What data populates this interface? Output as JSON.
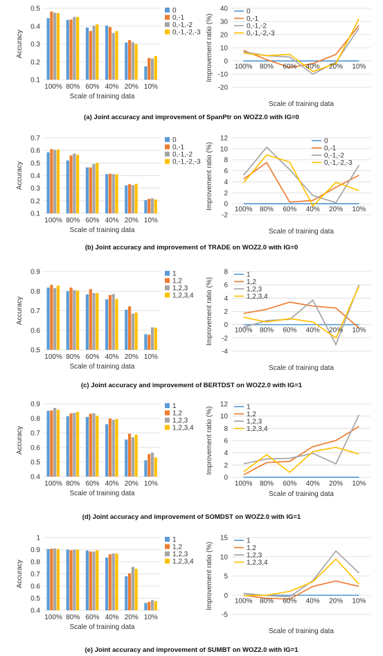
{
  "colors": [
    "#5b9bd5",
    "#ed7d31",
    "#a5a5a5",
    "#ffc000"
  ],
  "captions": [
    "(a) Joint accuracy and improvement  of SpanPtr on WOZ2.0 with IG=0",
    "(b) Joint accuracy and improvement of TRADE on WOZ2.0 with IG=0",
    "(c) Joint accuracy and improvement of BERTDST on WOZ2.0 with IG=1",
    "(d) Joint accuracy and improvement of SOMDST on WOZ2.0 with IG=1",
    "(e) Joint accuracy and improvement of SUMBT on WOZ2.0 with IG=1"
  ],
  "chart_data": [
    {
      "type": "bar",
      "panel": "a",
      "side": "left",
      "categories": [
        "100%",
        "80%",
        "60%",
        "40%",
        "20%",
        "10%"
      ],
      "xlabel": "Scale of training data",
      "ylabel": "Accuracy",
      "ylim": [
        0.1,
        0.5
      ],
      "yticks": [
        "0.1",
        "0.2",
        "0.3",
        "0.4",
        "0.5"
      ],
      "grid": true,
      "legend": "right",
      "series": [
        {
          "name": "0",
          "values": [
            0.445,
            0.435,
            0.392,
            0.403,
            0.308,
            0.175
          ]
        },
        {
          "name": "0,-1",
          "values": [
            0.482,
            0.437,
            0.373,
            0.395,
            0.322,
            0.222
          ]
        },
        {
          "name": "0,-1,-2",
          "values": [
            0.475,
            0.452,
            0.402,
            0.362,
            0.31,
            0.218
          ]
        },
        {
          "name": "0,-1,-2,-3",
          "values": [
            0.473,
            0.451,
            0.41,
            0.372,
            0.3,
            0.232
          ]
        }
      ]
    },
    {
      "type": "line",
      "panel": "a",
      "side": "right",
      "categories": [
        "100%",
        "80%",
        "60%",
        "40%",
        "20%",
        "10%"
      ],
      "xlabel": "Scale of training data",
      "ylabel": "Improvement ratio (%)",
      "ylim": [
        -20,
        40
      ],
      "yticks": [
        "-20",
        "-10",
        "0",
        "10",
        "20",
        "30",
        "40"
      ],
      "grid": true,
      "legend": "top-left",
      "series": [
        {
          "name": "0",
          "values": [
            0,
            0,
            0,
            0,
            0,
            0
          ]
        },
        {
          "name": "0,-1",
          "values": [
            8,
            1,
            -5,
            -2,
            5,
            27
          ]
        },
        {
          "name": "0,-1,-2",
          "values": [
            7,
            4,
            3,
            -10,
            -1,
            25
          ]
        },
        {
          "name": "0,-1,-2,-3",
          "values": [
            6,
            4,
            5,
            -8,
            -2,
            32
          ]
        }
      ]
    },
    {
      "type": "bar",
      "panel": "b",
      "side": "left",
      "categories": [
        "100%",
        "80%",
        "60%",
        "40%",
        "20%",
        "10%"
      ],
      "xlabel": "Scale of training data",
      "ylabel": "Accuracy",
      "ylim": [
        0.1,
        0.7
      ],
      "yticks": [
        "0.1",
        "0.2",
        "0.3",
        "0.4",
        "0.5",
        "0.6",
        "0.7"
      ],
      "grid": true,
      "legend": "right",
      "series": [
        {
          "name": "0",
          "values": [
            0.585,
            0.52,
            0.465,
            0.412,
            0.322,
            0.205
          ]
        },
        {
          "name": "0,-1",
          "values": [
            0.61,
            0.56,
            0.465,
            0.415,
            0.332,
            0.215
          ]
        },
        {
          "name": "0,-1,-2",
          "values": [
            0.605,
            0.575,
            0.492,
            0.412,
            0.325,
            0.22
          ]
        },
        {
          "name": "0,-1,-2,-3",
          "values": [
            0.607,
            0.565,
            0.5,
            0.41,
            0.335,
            0.21
          ]
        }
      ]
    },
    {
      "type": "line",
      "panel": "b",
      "side": "right",
      "categories": [
        "100%",
        "80%",
        "60%",
        "40%",
        "20%",
        "10%"
      ],
      "xlabel": "Scale of training data",
      "ylabel": "Improvement ratio (%)",
      "ylim": [
        -2,
        12
      ],
      "yticks": [
        "-2",
        "0",
        "2",
        "4",
        "6",
        "8",
        "10",
        "12"
      ],
      "grid": true,
      "legend": "top-right",
      "series": [
        {
          "name": "0",
          "values": [
            0,
            0,
            0,
            0,
            0,
            0
          ]
        },
        {
          "name": "0,-1",
          "values": [
            4.5,
            7.5,
            0.3,
            0.6,
            3,
            5.2
          ]
        },
        {
          "name": "0,-1,-2",
          "values": [
            5.2,
            10.3,
            6.2,
            1.5,
            0.2,
            7
          ]
        },
        {
          "name": "0,-1,-2,-3",
          "values": [
            3.8,
            8.9,
            7.6,
            -0.4,
            3.9,
            2.4
          ]
        }
      ]
    },
    {
      "type": "bar",
      "panel": "c",
      "side": "left",
      "categories": [
        "100%",
        "80%",
        "60%",
        "40%",
        "20%",
        "10%"
      ],
      "xlabel": "Scale of training data",
      "ylabel": "Accuracy",
      "ylim": [
        0.5,
        0.9
      ],
      "yticks": [
        "0.5",
        "0.6",
        "0.7",
        "0.8",
        "0.9"
      ],
      "grid": true,
      "legend": "right",
      "series": [
        {
          "name": "1",
          "values": [
            0.818,
            0.8,
            0.783,
            0.758,
            0.705,
            0.58
          ]
        },
        {
          "name": "1,2",
          "values": [
            0.832,
            0.818,
            0.81,
            0.78,
            0.722,
            0.577
          ]
        },
        {
          "name": "1,2,3",
          "values": [
            0.815,
            0.805,
            0.79,
            0.785,
            0.685,
            0.615
          ]
        },
        {
          "name": "1,2,3,4",
          "values": [
            0.828,
            0.803,
            0.79,
            0.76,
            0.69,
            0.613
          ]
        }
      ]
    },
    {
      "type": "line",
      "panel": "c",
      "side": "right",
      "categories": [
        "100%",
        "80%",
        "60%",
        "40%",
        "20%",
        "10%"
      ],
      "xlabel": "Scale of training data",
      "ylabel": "Improvement ratio (%)",
      "ylim": [
        -4,
        8
      ],
      "yticks": [
        "-4",
        "-2",
        "0",
        "2",
        "4",
        "6",
        "8"
      ],
      "grid": true,
      "legend": "top-left",
      "series": [
        {
          "name": "1",
          "values": [
            0,
            0,
            0,
            0,
            0,
            0
          ]
        },
        {
          "name": "1,2",
          "values": [
            1.7,
            2.3,
            3.4,
            2.8,
            2.5,
            -0.5
          ]
        },
        {
          "name": "1,2,3",
          "values": [
            -0.4,
            0.6,
            0.8,
            3.7,
            -3,
            6
          ]
        },
        {
          "name": "1,2,3,4",
          "values": [
            1.1,
            0.4,
            0.9,
            0.4,
            -2,
            5.8
          ]
        }
      ]
    },
    {
      "type": "bar",
      "panel": "d",
      "side": "left",
      "categories": [
        "100%",
        "80%",
        "60%",
        "40%",
        "20%",
        "10%"
      ],
      "xlabel": "Scale of training data",
      "ylabel": "Accuracy",
      "ylim": [
        0.4,
        0.9
      ],
      "yticks": [
        "0.4",
        "0.5",
        "0.6",
        "0.7",
        "0.8",
        "0.9"
      ],
      "grid": true,
      "legend": "right",
      "series": [
        {
          "name": "1",
          "values": [
            0.852,
            0.815,
            0.81,
            0.76,
            0.655,
            0.512
          ]
        },
        {
          "name": "1,2",
          "values": [
            0.855,
            0.835,
            0.832,
            0.8,
            0.695,
            0.555
          ]
        },
        {
          "name": "1,2,3",
          "values": [
            0.872,
            0.838,
            0.835,
            0.79,
            0.67,
            0.565
          ]
        },
        {
          "name": "1,2,3,4",
          "values": [
            0.86,
            0.845,
            0.818,
            0.795,
            0.688,
            0.532
          ]
        }
      ]
    },
    {
      "type": "line",
      "panel": "d",
      "side": "right",
      "categories": [
        "100%",
        "80%",
        "60%",
        "40%",
        "20%",
        "10%"
      ],
      "xlabel": "Scale of training data",
      "ylabel": "Improvement ratio (%)",
      "ylim": [
        0,
        12
      ],
      "yticks": [
        "0",
        "2",
        "4",
        "6",
        "8",
        "10",
        "12"
      ],
      "grid": true,
      "legend": "top-left",
      "series": [
        {
          "name": "1",
          "values": [
            0,
            0,
            0,
            0,
            0,
            0
          ]
        },
        {
          "name": "1,2",
          "values": [
            0.4,
            2.4,
            2.6,
            5,
            6,
            8.3
          ]
        },
        {
          "name": "1,2,3",
          "values": [
            2.2,
            3,
            3.1,
            3.9,
            2.2,
            10.2
          ]
        },
        {
          "name": "1,2,3,4",
          "values": [
            0.9,
            3.7,
            0.8,
            4.2,
            4.9,
            3.8
          ]
        }
      ]
    },
    {
      "type": "bar",
      "panel": "e",
      "side": "left",
      "categories": [
        "100%",
        "80%",
        "60%",
        "40%",
        "20%",
        "10%"
      ],
      "xlabel": "Scale of training data",
      "ylabel": "Accuracy",
      "ylim": [
        0.4,
        1.0
      ],
      "yticks": [
        "0.4",
        "0.5",
        "0.6",
        "0.7",
        "0.8",
        "0.9",
        "1"
      ],
      "grid": true,
      "legend": "right",
      "series": [
        {
          "name": "1",
          "values": [
            0.905,
            0.9,
            0.893,
            0.835,
            0.68,
            0.46
          ]
        },
        {
          "name": "1,2",
          "values": [
            0.908,
            0.895,
            0.885,
            0.862,
            0.705,
            0.47
          ]
        },
        {
          "name": "1,2,3",
          "values": [
            0.91,
            0.9,
            0.885,
            0.868,
            0.758,
            0.485
          ]
        },
        {
          "name": "1,2,3,4",
          "values": [
            0.905,
            0.9,
            0.895,
            0.868,
            0.742,
            0.475
          ]
        }
      ]
    },
    {
      "type": "line",
      "panel": "e",
      "side": "right",
      "categories": [
        "100%",
        "80%",
        "60%",
        "40%",
        "20%",
        "10%"
      ],
      "xlabel": "Scale of training data",
      "ylabel": "Improvement ratio (%)",
      "ylim": [
        -5,
        15
      ],
      "yticks": [
        "-5",
        "0",
        "5",
        "10",
        "15"
      ],
      "grid": true,
      "legend": "top-left",
      "series": [
        {
          "name": "1",
          "values": [
            0,
            0,
            0,
            0,
            0,
            0
          ]
        },
        {
          "name": "1,2",
          "values": [
            0,
            -0.8,
            -1,
            2.3,
            3.7,
            2.3
          ]
        },
        {
          "name": "1,2,3",
          "values": [
            0.5,
            -0.1,
            -0.4,
            3.8,
            11.5,
            5.8
          ]
        },
        {
          "name": "1,2,3,4",
          "values": [
            -0.1,
            0,
            1,
            3.5,
            9.4,
            2.9
          ]
        }
      ]
    }
  ]
}
